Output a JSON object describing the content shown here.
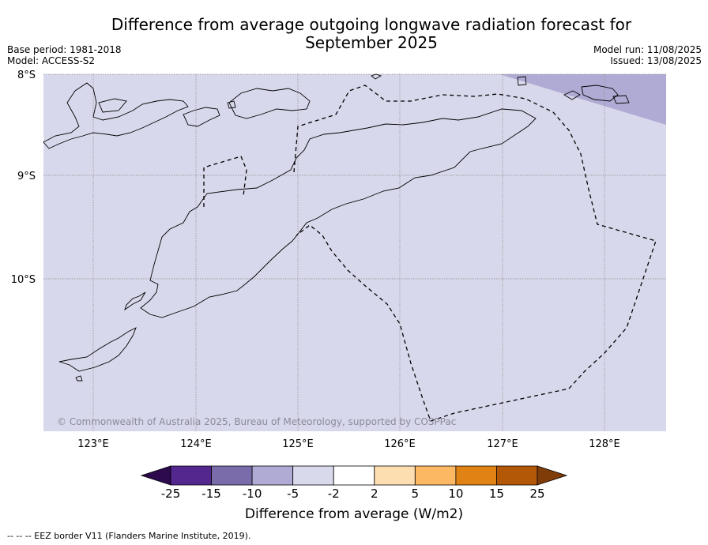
{
  "title_line1": "Difference from average outgoing longwave radiation forecast for",
  "title_line2": "September 2025",
  "base_period": "Base period: 1981-2018",
  "model": "Model: ACCESS-S2",
  "model_run": "Model run: 11/08/2025",
  "issued": "Issued: 13/08/2025",
  "lat_labels": [
    "8°S",
    "9°S",
    "10°S"
  ],
  "lon_labels": [
    "123°E",
    "124°E",
    "125°E",
    "126°E",
    "127°E",
    "128°E"
  ],
  "copyright": "© Commonwealth of Australia 2025, Bureau of Meteorology, supported by COSPPac",
  "colorbar": {
    "ticks": [
      "-25",
      "-15",
      "-10",
      "-5",
      "-2",
      "2",
      "5",
      "10",
      "15",
      "25"
    ],
    "colors": [
      "#2d0a4e",
      "#54278f",
      "#7a6cab",
      "#b0abd4",
      "#d9d9ec",
      "#ffffff",
      "#fddeb0",
      "#fdb863",
      "#e08214",
      "#b35806",
      "#7f3b08"
    ],
    "title": "Difference from average (W/m2)"
  },
  "map_colors": {
    "background": "#d8d8ec",
    "anomaly_patch": "#b0abd4"
  },
  "footer": "-- -- -- EEZ border V11 (Flanders Marine Institute, 2019)."
}
